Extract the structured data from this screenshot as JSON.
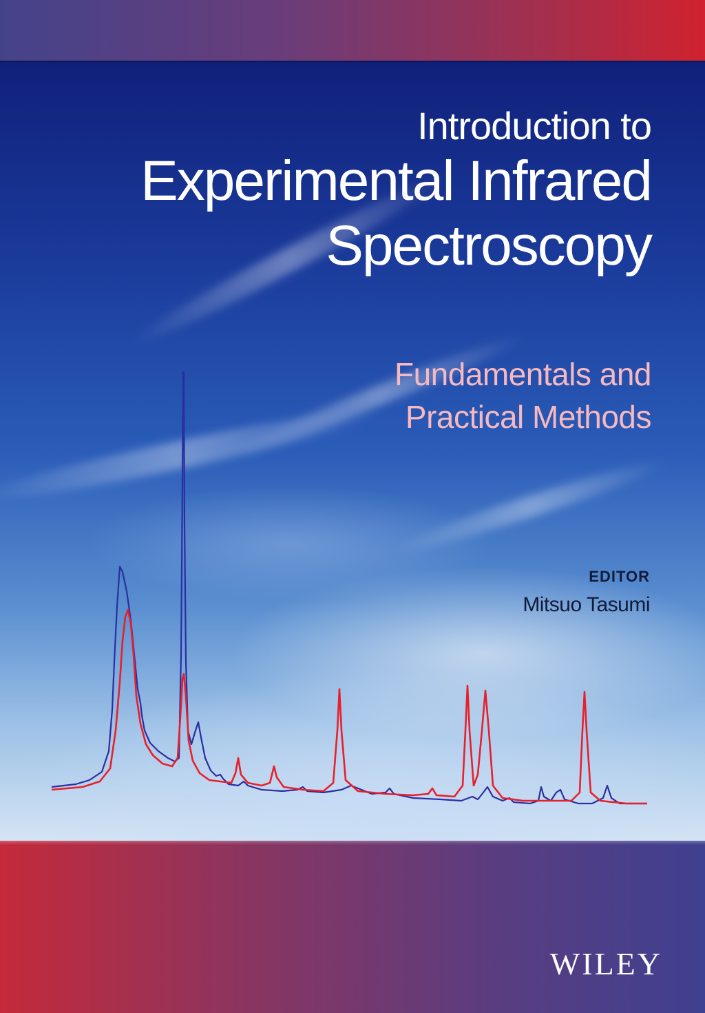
{
  "cover": {
    "title_line1": "Introduction to",
    "title_line2": "Experimental Infrared",
    "title_line3": "Spectroscopy",
    "subtitle_line1": "Fundamentals and",
    "subtitle_line2": "Practical Methods",
    "editor_label": "EDITOR",
    "editor_name": "Mitsuo Tasumi",
    "publisher": "WILEY"
  },
  "colors": {
    "title": "#ffffff",
    "subtitle": "#f6b9bf",
    "editor_text": "#111b3a",
    "spectrum_blue": "#2a2fa0",
    "spectrum_red": "#e8202a"
  }
}
